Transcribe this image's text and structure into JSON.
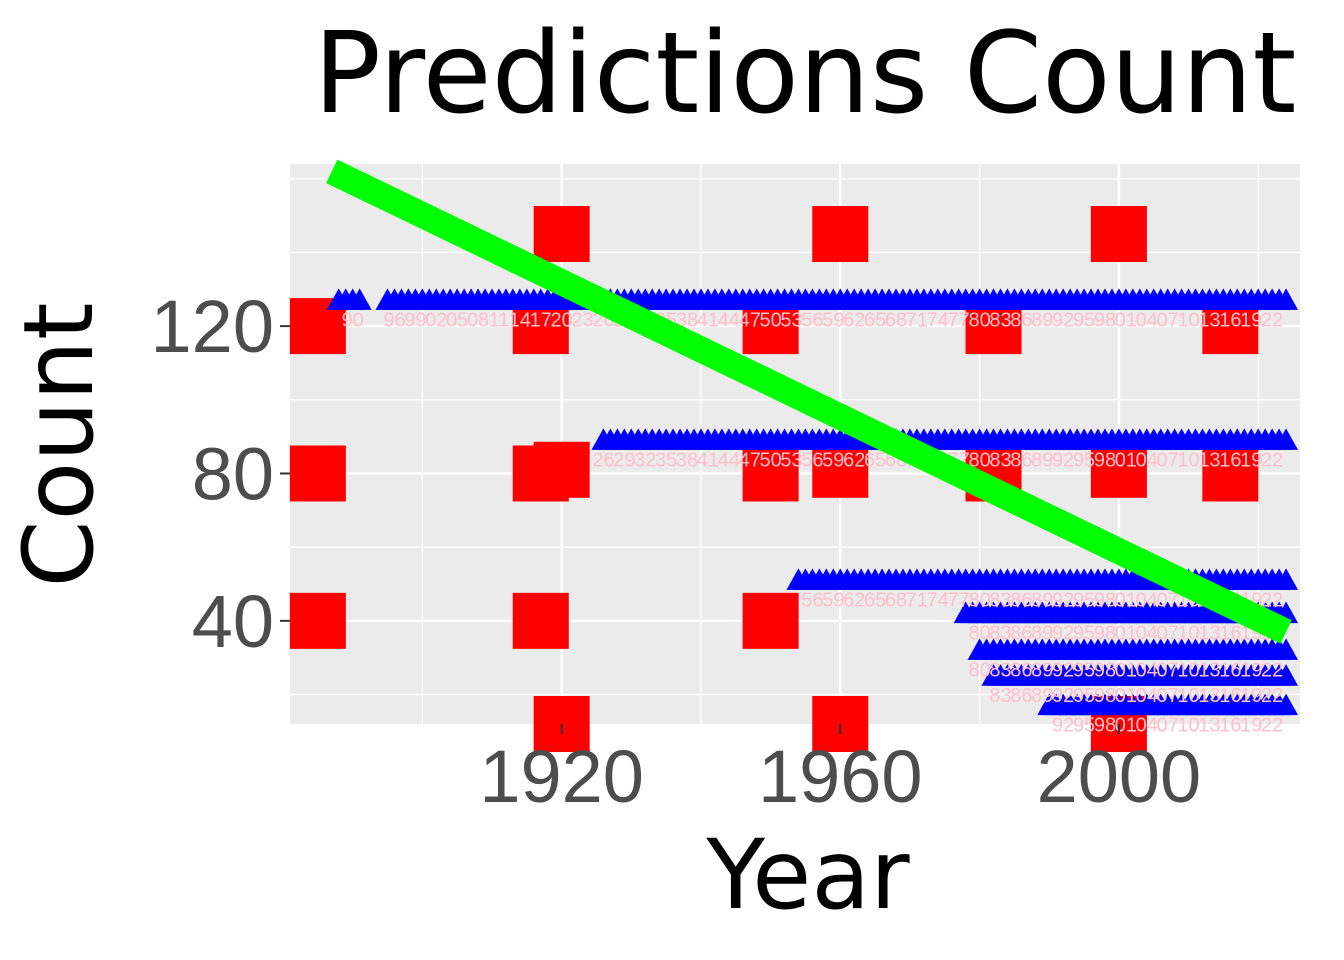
{
  "chart_data": {
    "type": "scatter",
    "title": "Predictions Count",
    "xlabel": "Year",
    "ylabel": "Count",
    "xlim": [
      1881,
      2026
    ],
    "ylim": [
      12,
      164
    ],
    "x_ticks": [
      1920,
      1960,
      2000
    ],
    "y_ticks": [
      40,
      80,
      120
    ],
    "grid": true,
    "background_color": "#ebebeb",
    "grid_color": "#ffffff",
    "series": [
      {
        "kind": "square_markers",
        "color": "#ff0000",
        "points": [
          [
            1885,
            120
          ],
          [
            1885,
            80
          ],
          [
            1885,
            40
          ],
          [
            1917,
            120
          ],
          [
            1917,
            80
          ],
          [
            1917,
            40
          ],
          [
            1920,
            145
          ],
          [
            1920,
            81
          ],
          [
            1920,
            12
          ],
          [
            1950,
            120
          ],
          [
            1950,
            80
          ],
          [
            1950,
            40
          ],
          [
            1960,
            145
          ],
          [
            1960,
            81
          ],
          [
            1960,
            12
          ],
          [
            1982,
            120
          ],
          [
            1982,
            80
          ],
          [
            2000,
            145
          ],
          [
            2000,
            81
          ],
          [
            2000,
            12
          ],
          [
            2016,
            120
          ],
          [
            2016,
            80
          ]
        ]
      },
      {
        "kind": "triangle_markers",
        "color": "#0000ff",
        "groups": [
          {
            "y": 127,
            "x_from": 1888,
            "x_to": 2024,
            "gaps": [
              [
                1891,
                1895
              ]
            ]
          },
          {
            "y": 89,
            "x_from": 1926,
            "x_to": 2024
          },
          {
            "y": 51,
            "x_from": 1954,
            "x_to": 2024
          },
          {
            "y": 42,
            "x_from": 1978,
            "x_to": 2024
          },
          {
            "y": 32,
            "x_from": 1980,
            "x_to": 2024
          },
          {
            "y": 25,
            "x_from": 1982,
            "x_to": 2024
          },
          {
            "y": 17,
            "x_from": 1990,
            "x_to": 2024
          }
        ]
      },
      {
        "kind": "trend_line",
        "color": "#00ff00",
        "x": [
          1887,
          2024
        ],
        "y": [
          162,
          37
        ]
      }
    ],
    "point_label_color": "#ffc0cb"
  }
}
